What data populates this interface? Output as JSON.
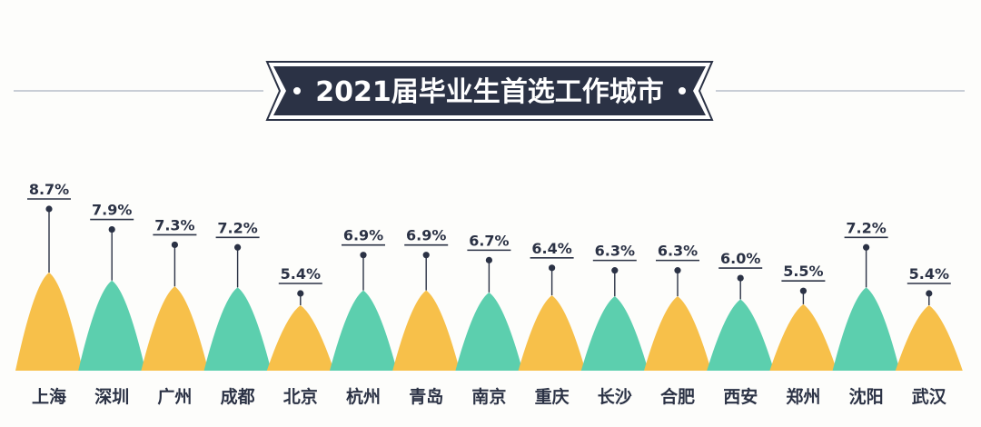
{
  "colors": {
    "accent_yellow": "#f7c04a",
    "accent_teal": "#5ccfae",
    "banner_bg": "#2b3245",
    "text_dark": "#2b3245",
    "rule_line": "#c9ced6"
  },
  "chart_data": {
    "type": "bar",
    "style": "pointed-peaks with lollipop value markers",
    "title": "2021届毕业生首选工作城市",
    "unit": "%",
    "ylim": [
      0,
      9
    ],
    "grid": false,
    "legend": "none",
    "categories": [
      "上海",
      "深圳",
      "广州",
      "成都",
      "北京",
      "杭州",
      "青岛",
      "南京",
      "重庆",
      "长沙",
      "合肥",
      "西安",
      "郑州",
      "沈阳",
      "武汉"
    ],
    "values": [
      8.7,
      7.9,
      7.3,
      7.2,
      5.4,
      6.9,
      6.9,
      6.7,
      6.4,
      6.3,
      6.3,
      6.0,
      5.5,
      7.2,
      5.4
    ],
    "labels": [
      "8.7%",
      "7.9%",
      "7.3%",
      "7.2%",
      "5.4%",
      "6.9%",
      "6.9%",
      "6.7%",
      "6.4%",
      "6.3%",
      "6.3%",
      "6.0%",
      "5.5%",
      "7.2%",
      "5.4%"
    ],
    "colors": [
      "#f7c04a",
      "#5ccfae",
      "#f7c04a",
      "#5ccfae",
      "#f7c04a",
      "#5ccfae",
      "#f7c04a",
      "#5ccfae",
      "#f7c04a",
      "#5ccfae",
      "#f7c04a",
      "#5ccfae",
      "#f7c04a",
      "#5ccfae",
      "#f7c04a"
    ]
  }
}
